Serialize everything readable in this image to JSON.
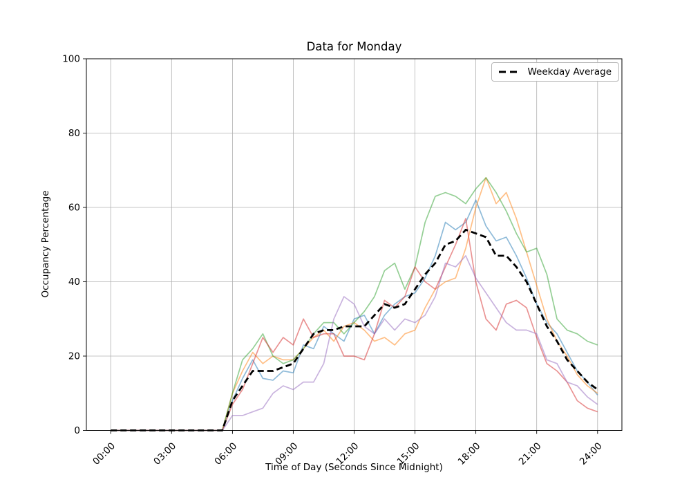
{
  "figure": {
    "title": "Data for Monday",
    "xlabel": "Time of Day (Seconds Since Midnight)",
    "ylabel": "Occupancy Percentage",
    "legend_label": "Weekday Average",
    "background_color": "#ffffff",
    "grid_color": "#b0b0b0",
    "axis_color": "#000000"
  },
  "chart_data": {
    "type": "line",
    "title": "Data for Monday",
    "xlabel": "Time of Day (Seconds Since Midnight)",
    "ylabel": "Occupancy Percentage",
    "grid": true,
    "legend_position": "upper right",
    "legend_entries": [
      "Weekday Average"
    ],
    "ylim": [
      0,
      100
    ],
    "xlim_seconds": [
      -4320,
      90720
    ],
    "x_ticks_hours": [
      0,
      3,
      6,
      9,
      12,
      15,
      18,
      21,
      24
    ],
    "x_tick_labels": [
      "00:00",
      "03:00",
      "06:00",
      "09:00",
      "12:00",
      "15:00",
      "18:00",
      "21:00",
      "24:00"
    ],
    "y_ticks": [
      0,
      20,
      40,
      60,
      80,
      100
    ],
    "x": [
      0,
      0.5,
      1,
      1.5,
      2,
      2.5,
      3,
      3.5,
      4,
      4.5,
      5,
      5.5,
      6,
      6.5,
      7,
      7.5,
      8,
      8.5,
      9,
      9.5,
      10,
      10.5,
      11,
      11.5,
      12,
      12.5,
      13,
      13.5,
      14,
      14.5,
      15,
      15.5,
      16,
      16.5,
      17,
      17.5,
      18,
      18.5,
      19,
      19.5,
      20,
      20.5,
      21,
      21.5,
      22,
      22.5,
      23,
      23.5,
      24
    ],
    "series": [
      {
        "name": "line-1",
        "data_name": "series-line-blue",
        "color": "#1f77b4",
        "opacity": 0.5,
        "width": 1.7,
        "dash": "",
        "values": [
          0,
          0,
          0,
          0,
          0,
          0,
          0,
          0,
          0,
          0,
          0,
          0,
          8,
          14,
          19,
          14,
          13.5,
          16,
          15.5,
          23,
          22,
          28,
          26,
          24,
          30,
          31,
          26,
          31,
          34,
          36,
          37,
          41,
          47,
          56,
          54,
          56,
          62,
          55,
          51,
          52,
          47,
          41,
          34,
          29,
          26,
          21,
          16,
          13,
          9.5
        ]
      },
      {
        "name": "line-2",
        "data_name": "series-line-orange",
        "color": "#ff7f0e",
        "opacity": 0.5,
        "width": 1.7,
        "dash": "",
        "values": [
          0,
          0,
          0,
          0,
          0,
          0,
          0,
          0,
          0,
          0,
          0,
          0,
          10,
          16,
          21,
          18,
          20,
          19,
          19,
          22,
          25,
          27,
          24,
          28,
          29,
          27,
          24,
          25,
          23,
          26,
          27,
          33,
          38,
          40,
          41,
          49,
          60,
          68,
          61,
          64,
          57,
          48,
          39,
          30,
          24,
          20,
          15,
          12,
          10
        ]
      },
      {
        "name": "line-3",
        "data_name": "series-line-green",
        "color": "#2ca02c",
        "opacity": 0.5,
        "width": 1.7,
        "dash": "",
        "values": [
          0,
          0,
          0,
          0,
          0,
          0,
          0,
          0,
          0,
          0,
          0,
          0,
          10,
          19,
          22,
          26,
          20,
          18,
          19,
          22,
          26,
          29,
          29,
          26,
          29,
          32,
          36,
          43,
          45,
          38,
          44,
          56,
          63,
          64,
          63,
          61,
          65,
          68,
          64,
          59,
          53,
          48,
          49,
          42,
          30,
          27,
          26,
          24,
          23
        ]
      },
      {
        "name": "line-4",
        "data_name": "series-line-red",
        "color": "#d62728",
        "opacity": 0.5,
        "width": 1.7,
        "dash": "",
        "values": [
          0,
          0,
          0,
          0,
          0,
          0,
          0,
          0,
          0,
          0,
          0,
          0,
          7,
          11,
          18,
          25,
          21,
          25,
          23,
          30,
          25,
          26,
          26,
          20,
          20,
          19,
          26,
          35,
          33,
          36,
          44,
          40,
          38,
          44,
          50,
          57,
          40,
          30,
          27,
          34,
          35,
          33,
          25,
          18,
          16,
          13,
          8,
          6,
          5
        ]
      },
      {
        "name": "line-5",
        "data_name": "series-line-purple",
        "color": "#9467bd",
        "opacity": 0.5,
        "width": 1.7,
        "dash": "",
        "values": [
          0,
          0,
          0,
          0,
          0,
          0,
          0,
          0,
          0,
          0,
          0,
          0,
          4,
          4,
          5,
          6,
          10,
          12,
          11,
          13,
          13,
          18,
          30,
          36,
          34,
          28,
          26,
          30,
          27,
          30,
          29,
          31,
          36,
          45,
          44,
          47,
          41,
          37,
          33,
          29,
          27,
          27,
          26,
          19,
          18,
          13,
          12,
          9,
          7
        ]
      },
      {
        "name": "Weekday Average",
        "data_name": "weekday-average-line",
        "color": "#000000",
        "opacity": 1,
        "width": 2.8,
        "dash": "9,5",
        "values": [
          0,
          0,
          0,
          0,
          0,
          0,
          0,
          0,
          0,
          0,
          0,
          0,
          8,
          12,
          16,
          16,
          16,
          17,
          18,
          22,
          26,
          27,
          27,
          28,
          28,
          28,
          31,
          34,
          33,
          34,
          38,
          42,
          45,
          50,
          51,
          54,
          53,
          52,
          47,
          47,
          44,
          40,
          34,
          28,
          24,
          19,
          16,
          13,
          11
        ]
      }
    ]
  }
}
